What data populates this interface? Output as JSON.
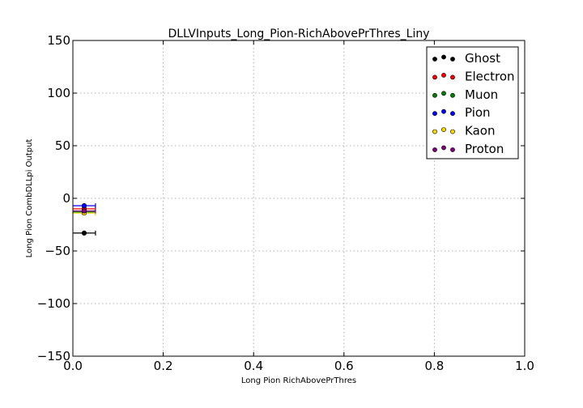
{
  "chart_data": {
    "type": "scatter",
    "title": "DLLVInputs_Long_Pion-RichAbovePrThres_Liny",
    "xlabel": "Long Pion RichAbovePrThres",
    "ylabel": "Long Pion CombDLLpi Output",
    "xlim": [
      0.0,
      1.0
    ],
    "ylim": [
      -150,
      150
    ],
    "xticks": [
      "0.0",
      "0.2",
      "0.4",
      "0.6",
      "0.8",
      "1.0"
    ],
    "yticks": [
      "150",
      "100",
      "50",
      "0",
      "−50",
      "−100",
      "−150"
    ],
    "grid": true,
    "legend_position": "top-right",
    "series": [
      {
        "name": "Ghost",
        "color": "#000000",
        "x": 0.025,
        "xerr": 0.025,
        "y": -33
      },
      {
        "name": "Electron",
        "color": "#ff0000",
        "x": 0.025,
        "xerr": 0.025,
        "y": -10
      },
      {
        "name": "Muon",
        "color": "#008000",
        "x": 0.025,
        "xerr": 0.025,
        "y": -13
      },
      {
        "name": "Pion",
        "color": "#0000ff",
        "x": 0.025,
        "xerr": 0.025,
        "y": -7
      },
      {
        "name": "Kaon",
        "color": "#ffd700",
        "x": 0.025,
        "xerr": 0.025,
        "y": -14
      },
      {
        "name": "Proton",
        "color": "#800080",
        "x": 0.025,
        "xerr": 0.025,
        "y": -12
      }
    ]
  }
}
